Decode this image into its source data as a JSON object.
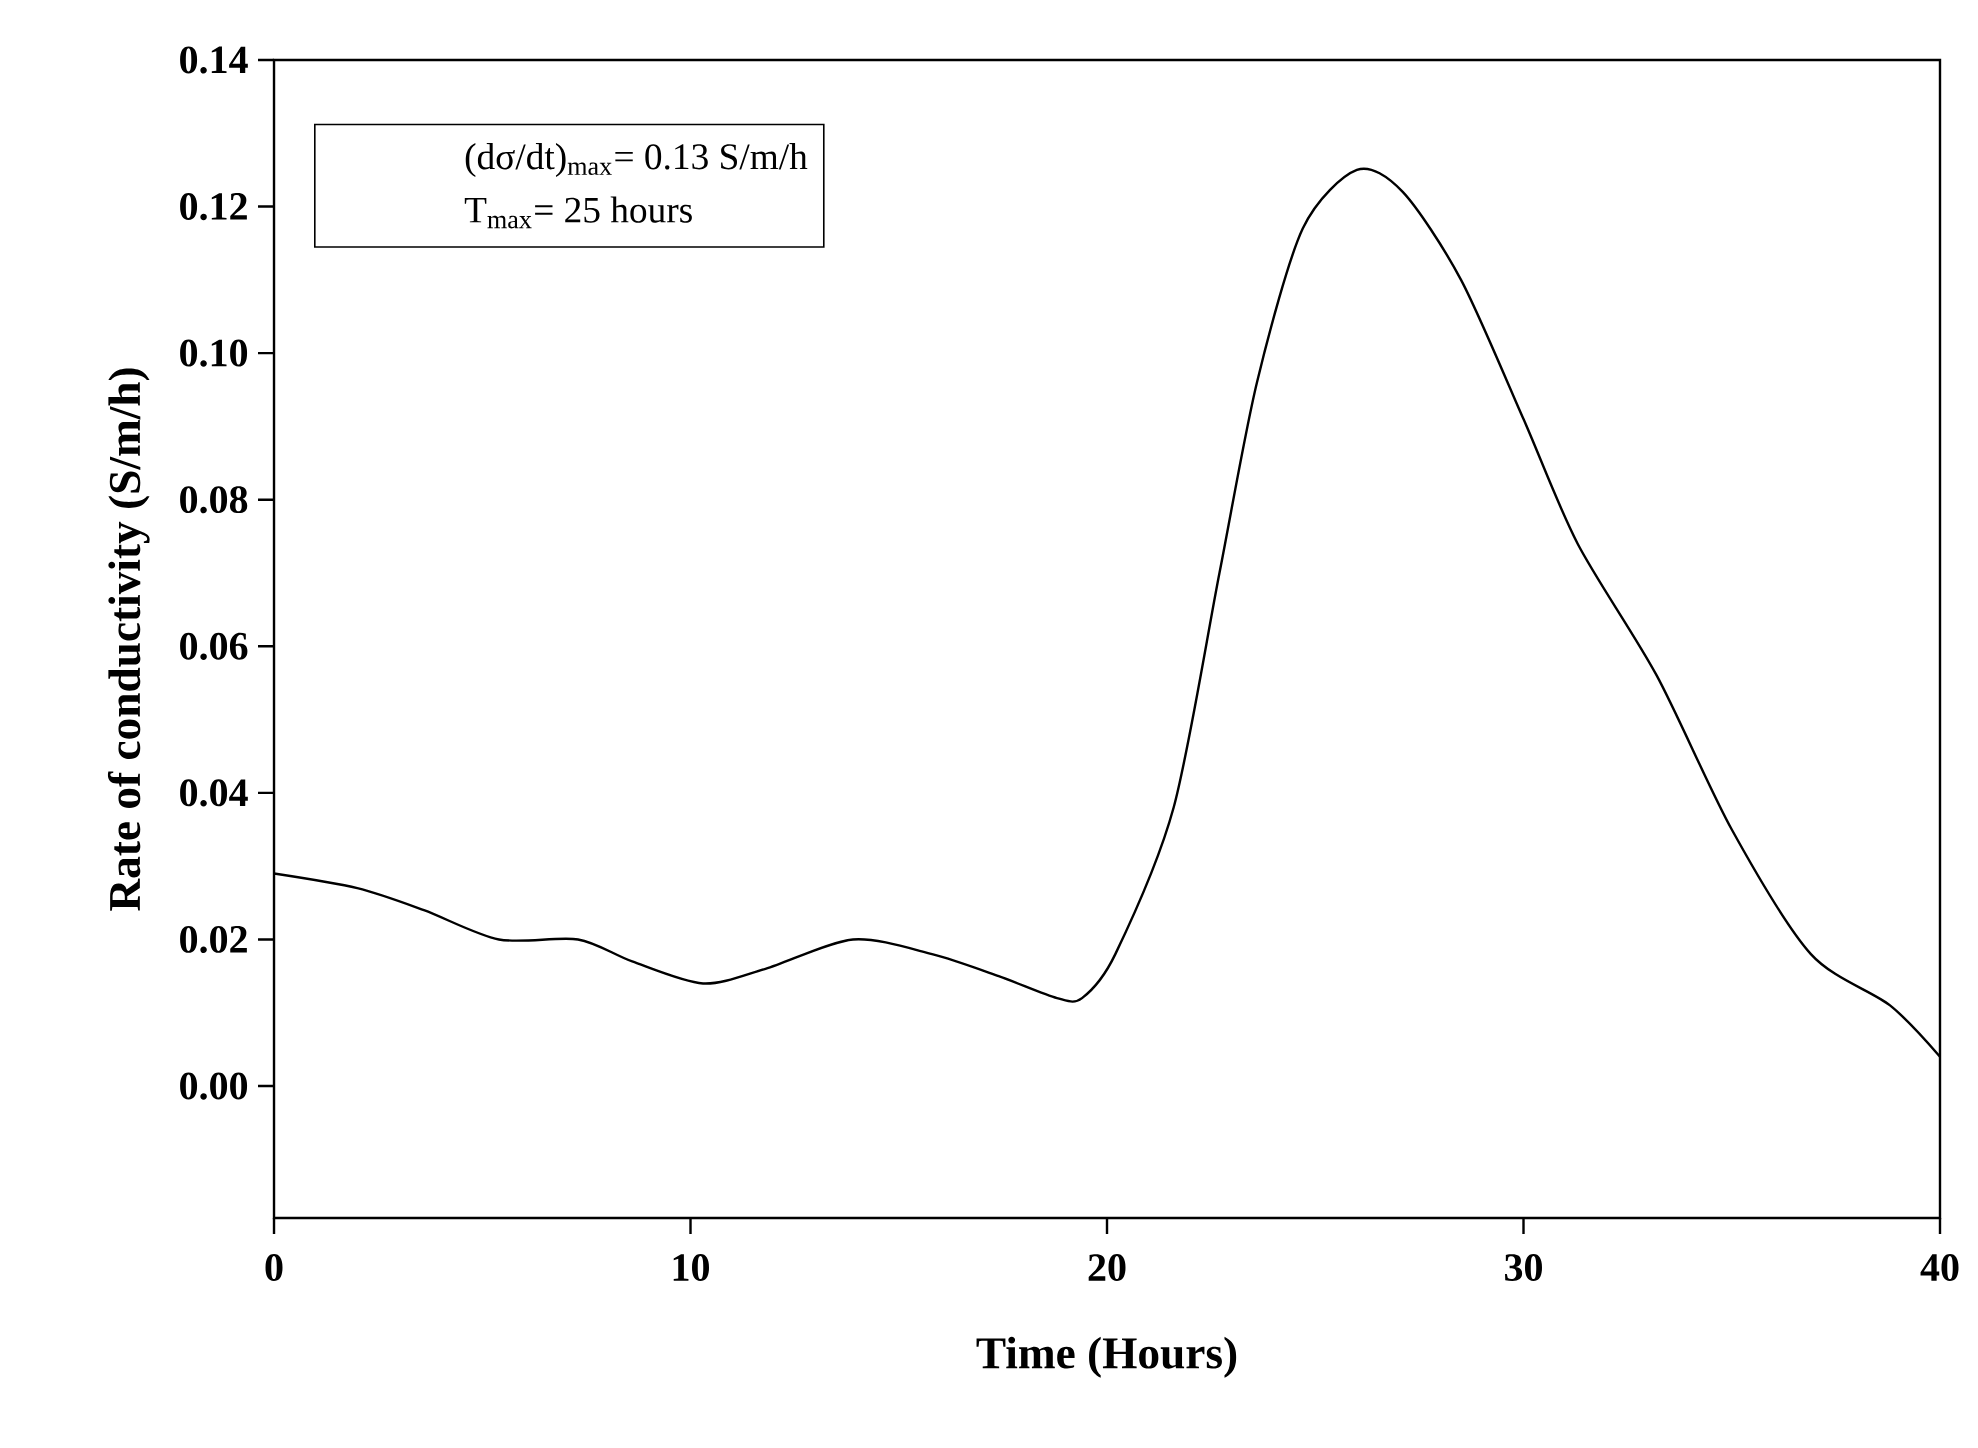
{
  "chart_data": {
    "type": "line",
    "xlabel": "Time (Hours)",
    "ylabel": "Rate of conductivity (S/m/h)",
    "annotations": [
      "(dσ/dt)$_{max}$= 0.13 S/m/h",
      "T$_{max}$= 25 hours"
    ],
    "x": [
      0,
      2.0,
      3.6,
      5.4,
      7.3,
      8.6,
      10.3,
      11.8,
      13.9,
      15.8,
      17.4,
      18.8,
      19.4,
      20.2,
      21.6,
      22.7,
      23.6,
      24.7,
      26.0,
      27.1,
      28.5,
      30.0,
      31.3,
      33.2,
      35.0,
      36.9,
      38.8,
      40
    ],
    "values": [
      0.029,
      0.027,
      0.024,
      0.02,
      0.02,
      0.017,
      0.014,
      0.016,
      0.02,
      0.018,
      0.015,
      0.012,
      0.012,
      0.018,
      0.038,
      0.07,
      0.096,
      0.117,
      0.125,
      0.122,
      0.11,
      0.091,
      0.074,
      0.056,
      0.035,
      0.018,
      0.011,
      0.004
    ],
    "color": "#000000",
    "xlim": [
      0,
      40
    ],
    "ylim": [
      -0.018,
      0.14
    ],
    "xticks": [
      0,
      10,
      20,
      30,
      40
    ],
    "yticks": [
      {
        "value": 0,
        "label": "0.00"
      },
      {
        "value": 0.02,
        "label": "0.02"
      },
      {
        "value": 0.04,
        "label": "0.04"
      },
      {
        "value": 0.06,
        "label": "0.06"
      },
      {
        "value": 0.08,
        "label": "0.08"
      },
      {
        "value": 0.1,
        "label": "0.10"
      },
      {
        "value": 0.12,
        "label": "0.12"
      },
      {
        "value": 0.14,
        "label": "0.14"
      }
    ]
  }
}
